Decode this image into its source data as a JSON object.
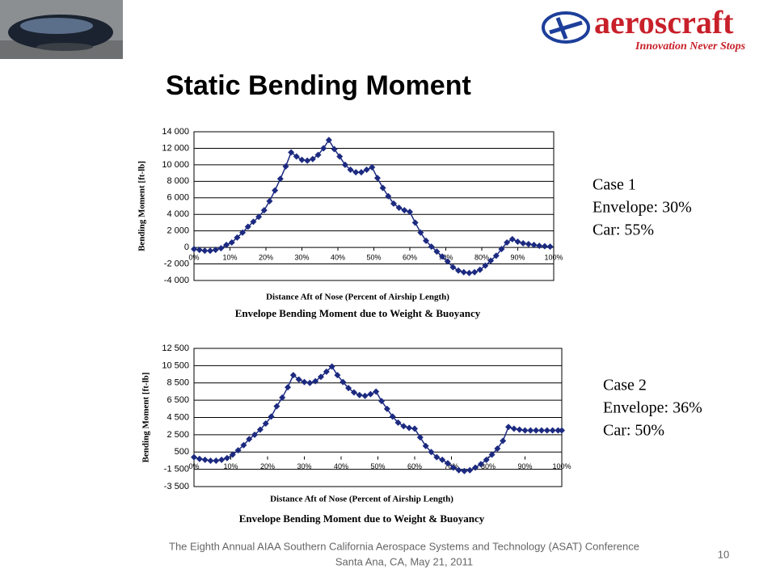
{
  "logo": {
    "name": "aeroscraft",
    "tagline": "Innovation Never Stops"
  },
  "title": "Static Bending Moment",
  "cases": [
    {
      "name": "Case 1",
      "envelope": "Envelope: 30%",
      "car": "Car: 55%"
    },
    {
      "name": "Case 2",
      "envelope": "Envelope: 36%",
      "car": "Car: 50%"
    }
  ],
  "footer": {
    "line1": "The Eighth Annual AIAA Southern California Aerospace Systems and Technology (ASAT) Conference",
    "line2": "Santa Ana, CA, May 21, 2011",
    "page": "10"
  },
  "chart_data": [
    {
      "type": "line",
      "title": "Envelope Bending Moment due to Weight & Buoyancy",
      "x_label": "Distance Aft of Nose (Percent of Airship Length)",
      "y_label": "Bending Moment [ft-lb]",
      "xlim": [
        0,
        100
      ],
      "ylim": [
        -4000,
        14000
      ],
      "grid": true,
      "xticks": [
        {
          "value": 0,
          "label": "0%"
        },
        {
          "value": 10,
          "label": "10%"
        },
        {
          "value": 20,
          "label": "20%"
        },
        {
          "value": 30,
          "label": "30%"
        },
        {
          "value": 40,
          "label": "40%"
        },
        {
          "value": 50,
          "label": "50%"
        },
        {
          "value": 60,
          "label": "60%"
        },
        {
          "value": 70,
          "label": "70%"
        },
        {
          "value": 80,
          "label": "80%"
        },
        {
          "value": 90,
          "label": "90%"
        },
        {
          "value": 100,
          "label": "100%"
        }
      ],
      "yticks": [
        {
          "value": -4000,
          "label": "-4 000"
        },
        {
          "value": -2000,
          "label": "-2 000"
        },
        0,
        {
          "value": 2000,
          "label": "2 000"
        },
        {
          "value": 4000,
          "label": "4 000"
        },
        {
          "value": 6000,
          "label": "6 000"
        },
        {
          "value": 8000,
          "label": "8 000"
        },
        {
          "value": 10000,
          "label": "10 000"
        },
        {
          "value": 12000,
          "label": "12 000"
        },
        {
          "value": 14000,
          "label": "14 000"
        }
      ],
      "x": [
        0,
        1.5,
        3,
        4.5,
        6,
        7.5,
        9,
        10.5,
        12,
        13.5,
        15,
        16.5,
        18,
        19.5,
        21,
        22.5,
        24,
        25.5,
        27,
        28.5,
        30,
        31.5,
        33,
        34.5,
        36,
        37.5,
        39,
        40.5,
        42,
        43.5,
        45,
        46.5,
        48,
        49.5,
        51,
        52.5,
        54,
        55.5,
        57,
        58.5,
        60,
        61.5,
        63,
        64.5,
        66,
        67.5,
        69,
        70.5,
        72,
        73.5,
        75,
        76.5,
        78,
        79.5,
        81,
        82.5,
        84,
        85.5,
        87,
        88.5,
        90,
        91.5,
        93,
        94.5,
        96,
        97.5,
        99
      ],
      "series": [
        {
          "color": "#1c2a80",
          "values": [
            -200,
            -300,
            -400,
            -400,
            -300,
            -100,
            300,
            600,
            1200,
            1800,
            2500,
            3100,
            3700,
            4500,
            5600,
            6900,
            8300,
            9800,
            11500,
            11000,
            10600,
            10500,
            10700,
            11200,
            12000,
            13000,
            11900,
            11000,
            10000,
            9400,
            9100,
            9100,
            9400,
            9700,
            8400,
            7200,
            6200,
            5300,
            4800,
            4500,
            4300,
            3000,
            1800,
            800,
            100,
            -500,
            -1100,
            -1700,
            -2400,
            -2800,
            -3000,
            -3100,
            -3000,
            -2700,
            -2200,
            -1600,
            -1000,
            -200,
            600,
            1000,
            700,
            500,
            400,
            300,
            200,
            150,
            100
          ]
        }
      ]
    },
    {
      "type": "line",
      "title": "Envelope Bending Moment due to Weight & Buoyancy",
      "x_label": "Distance Aft of Nose (Percent of Airship Length)",
      "y_label": "Bending Moment [ft-lb]",
      "xlim": [
        0,
        100
      ],
      "ylim": [
        -3500,
        12500
      ],
      "grid": true,
      "xticks": [
        {
          "value": 0,
          "label": "0%"
        },
        {
          "value": 10,
          "label": "10%"
        },
        {
          "value": 20,
          "label": "20%"
        },
        {
          "value": 30,
          "label": "30%"
        },
        {
          "value": 40,
          "label": "40%"
        },
        {
          "value": 50,
          "label": "50%"
        },
        {
          "value": 60,
          "label": "60%"
        },
        {
          "value": 70,
          "label": "70%"
        },
        {
          "value": 80,
          "label": "80%"
        },
        {
          "value": 90,
          "label": "90%"
        },
        {
          "value": 100,
          "label": "100%"
        }
      ],
      "yticks": [
        {
          "value": -3500,
          "label": "-3 500"
        },
        {
          "value": -1500,
          "label": "-1 500"
        },
        500,
        {
          "value": 2500,
          "label": "2 500"
        },
        {
          "value": 4500,
          "label": "4 500"
        },
        {
          "value": 6500,
          "label": "6 500"
        },
        {
          "value": 8500,
          "label": "8 500"
        },
        {
          "value": 10500,
          "label": "10 500"
        },
        {
          "value": 12500,
          "label": "12 500"
        }
      ],
      "x": [
        0,
        1.5,
        3,
        4.5,
        6,
        7.5,
        9,
        10.5,
        12,
        13.5,
        15,
        16.5,
        18,
        19.5,
        21,
        22.5,
        24,
        25.5,
        27,
        28.5,
        30,
        31.5,
        33,
        34.5,
        36,
        37.5,
        39,
        40.5,
        42,
        43.5,
        45,
        46.5,
        48,
        49.5,
        51,
        52.5,
        54,
        55.5,
        57,
        58.5,
        60,
        61.5,
        63,
        64.5,
        66,
        67.5,
        69,
        70.5,
        72,
        73.5,
        75,
        76.5,
        78,
        79.5,
        81,
        82.5,
        84,
        85.5,
        87,
        88.5,
        90,
        91.5,
        93,
        94.5,
        96,
        97.5,
        99,
        100
      ],
      "series": [
        {
          "color": "#1c2a80",
          "values": [
            -100,
            -300,
            -400,
            -500,
            -500,
            -400,
            -200,
            200,
            700,
            1300,
            2000,
            2500,
            3100,
            3800,
            4600,
            5800,
            6800,
            8000,
            9400,
            8900,
            8600,
            8500,
            8700,
            9200,
            9800,
            10400,
            9400,
            8600,
            7900,
            7400,
            7100,
            7000,
            7200,
            7500,
            6400,
            5500,
            4600,
            3900,
            3500,
            3300,
            3200,
            2200,
            1200,
            500,
            -100,
            -400,
            -800,
            -1300,
            -1600,
            -1700,
            -1600,
            -1300,
            -900,
            -400,
            200,
            900,
            1800,
            3400,
            3200,
            3100,
            3000,
            3000,
            3000,
            3000,
            3000,
            3000,
            3000,
            3000
          ]
        }
      ]
    }
  ]
}
